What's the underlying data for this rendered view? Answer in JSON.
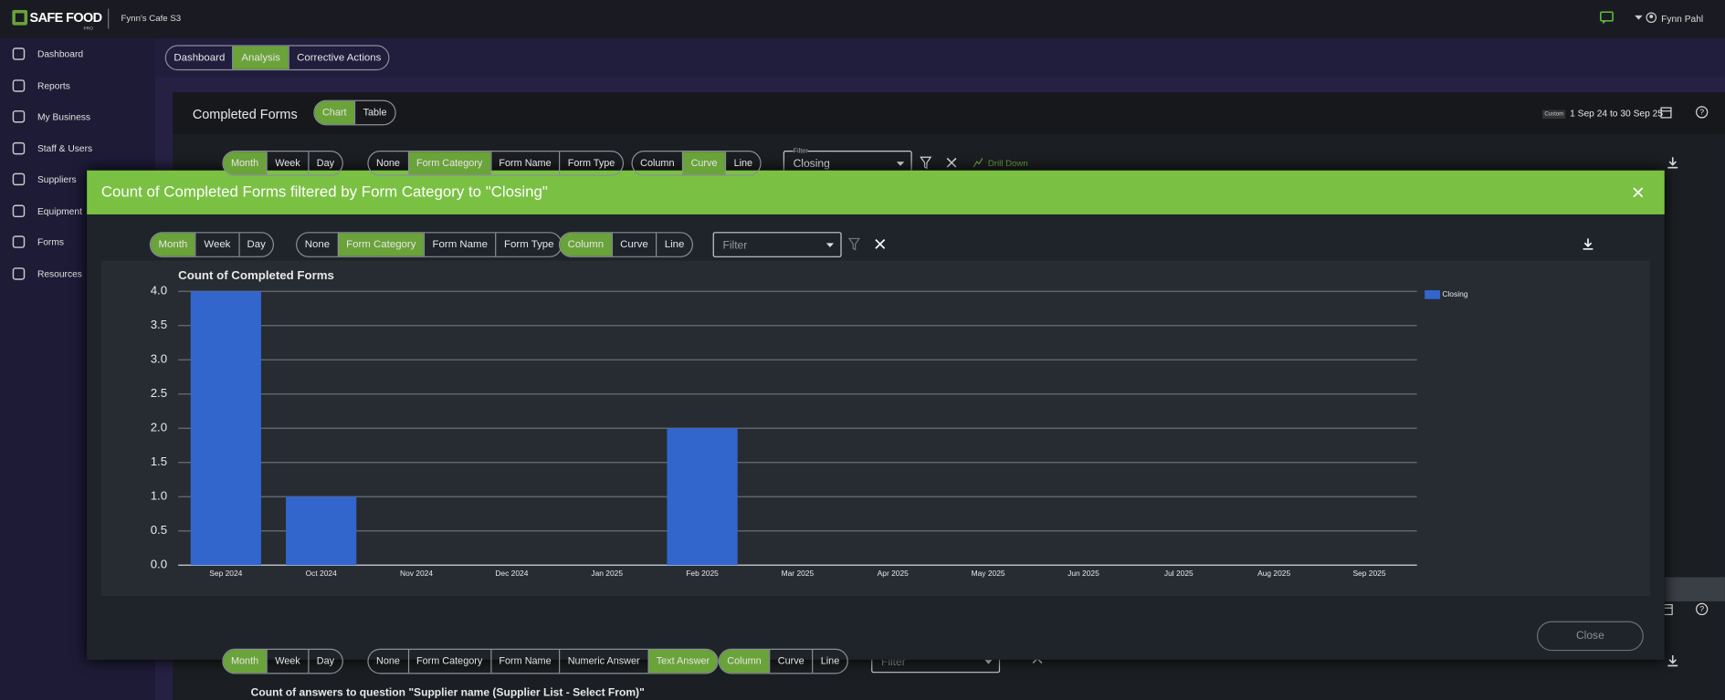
{
  "topbar": {
    "brand": "SAFE FOOD",
    "brand_sub": "PRO",
    "site": "Fynn's Cafe S3",
    "user": "Fynn Pahl"
  },
  "nav": [
    "Dashboard",
    "Reports",
    "My Business",
    "Staff & Users",
    "Suppliers",
    "Equipment",
    "Forms",
    "Resources"
  ],
  "tabs": [
    {
      "label": "Dashboard",
      "active": false
    },
    {
      "label": "Analysis",
      "active": true
    },
    {
      "label": "Corrective Actions",
      "active": false
    }
  ],
  "panel": {
    "title": "Completed Forms",
    "view_toggle": [
      {
        "label": "Chart",
        "active": true
      },
      {
        "label": "Table",
        "active": false
      }
    ],
    "date_badge": "Custom",
    "date_range": "1 Sep 24 to 30 Sep 25",
    "period": [
      {
        "label": "Month",
        "active": true
      },
      {
        "label": "Week",
        "active": false
      },
      {
        "label": "Day",
        "active": false
      }
    ],
    "group": [
      {
        "label": "None",
        "active": false
      },
      {
        "label": "Form Category",
        "active": true
      },
      {
        "label": "Form Name",
        "active": false
      },
      {
        "label": "Form Type",
        "active": false
      }
    ],
    "style": [
      {
        "label": "Column",
        "active": false
      },
      {
        "label": "Curve",
        "active": true
      },
      {
        "label": "Line",
        "active": false
      }
    ],
    "filter_label": "Filter",
    "filter_value": "Closing",
    "drill": "Drill Down"
  },
  "modal": {
    "title": "Count of Completed Forms filtered by Form Category to \"Closing\"",
    "period": [
      {
        "label": "Month",
        "active": true
      },
      {
        "label": "Week",
        "active": false
      },
      {
        "label": "Day",
        "active": false
      }
    ],
    "group": [
      {
        "label": "None",
        "active": false
      },
      {
        "label": "Form Category",
        "active": true
      },
      {
        "label": "Form Name",
        "active": false
      },
      {
        "label": "Form Type",
        "active": false
      }
    ],
    "style": [
      {
        "label": "Column",
        "active": true
      },
      {
        "label": "Curve",
        "active": false
      },
      {
        "label": "Line",
        "active": false
      }
    ],
    "filter_placeholder": "Filter",
    "close": "Close"
  },
  "lower_panel": {
    "period": [
      {
        "label": "Month",
        "active": true
      },
      {
        "label": "Week",
        "active": false
      },
      {
        "label": "Day",
        "active": false
      }
    ],
    "group": [
      {
        "label": "None",
        "active": false
      },
      {
        "label": "Form Category",
        "active": false
      },
      {
        "label": "Form Name",
        "active": false
      },
      {
        "label": "Numeric Answer",
        "active": false
      },
      {
        "label": "Text Answer",
        "active": true
      }
    ],
    "style": [
      {
        "label": "Column",
        "active": true
      },
      {
        "label": "Curve",
        "active": false
      },
      {
        "label": "Line",
        "active": false
      }
    ],
    "filter_placeholder": "Filter",
    "title": "Count of answers to question \"Supplier name (Supplier List - Select From)\""
  },
  "chart_data": {
    "type": "bar",
    "title": "Count of Completed Forms",
    "categories": [
      "Sep 2024",
      "Oct 2024",
      "Nov 2024",
      "Dec 2024",
      "Jan 2025",
      "Feb 2025",
      "Mar 2025",
      "Apr 2025",
      "May 2025",
      "Jun 2025",
      "Jul 2025",
      "Aug 2025",
      "Sep 2025"
    ],
    "series": [
      {
        "name": "Closing",
        "color": "#3366cc",
        "values": [
          4,
          1,
          0,
          0,
          0,
          2,
          0,
          0,
          0,
          0,
          0,
          0,
          0
        ]
      }
    ],
    "ylim": [
      0,
      4
    ],
    "yticks": [
      {
        "value": 0,
        "label": "0.0"
      },
      {
        "value": 0.5,
        "label": "0.5"
      },
      {
        "value": 1,
        "label": "1.0"
      },
      {
        "value": 1.5,
        "label": "1.5"
      },
      {
        "value": 2,
        "label": "2.0"
      },
      {
        "value": 2.5,
        "label": "2.5"
      },
      {
        "value": 3,
        "label": "3.0"
      },
      {
        "value": 3.5,
        "label": "3.5"
      },
      {
        "value": 4,
        "label": "4.0"
      }
    ],
    "grid": true,
    "legend": "right"
  }
}
